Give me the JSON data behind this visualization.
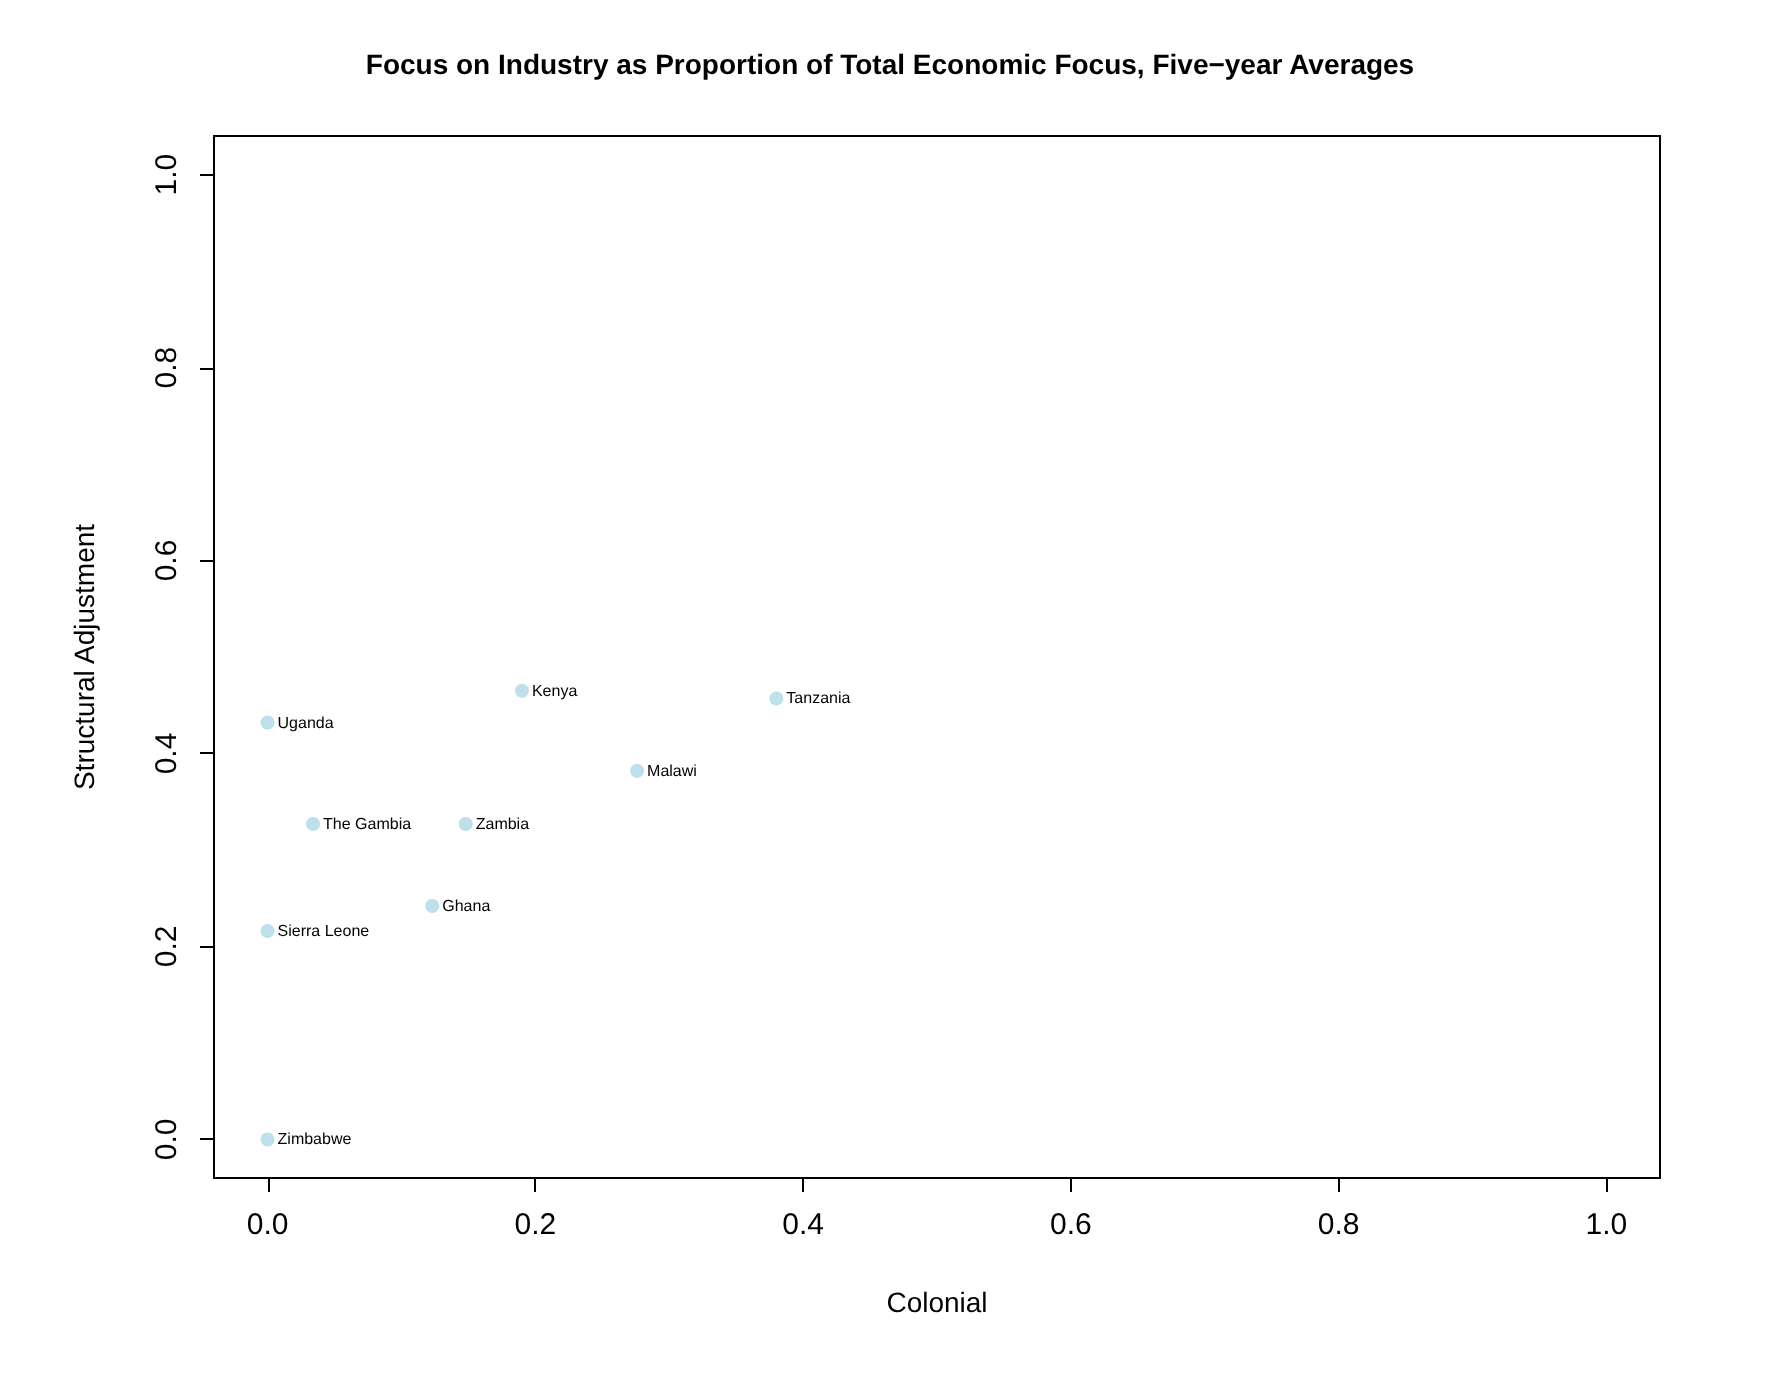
{
  "chart_data": {
    "type": "scatter",
    "title": "Focus on Industry as Proportion of Total Economic Focus, Five−year Averages",
    "xlabel": "Colonial",
    "ylabel": "Structural Adjustment",
    "x": [
      0,
      0.19,
      0.38,
      0.276,
      0.034,
      0.148,
      0.123,
      0,
      0
    ],
    "series": [
      {
        "color": "#add8e6",
        "values": [
          0.432,
          0.465,
          0.457,
          0.382,
          0.327,
          0.327,
          0.242,
          0.216,
          0
        ]
      }
    ],
    "annotations": [
      {
        "text": "Uganda",
        "x": 0,
        "y": 0.432
      },
      {
        "text": "Kenya",
        "x": 0.19,
        "y": 0.465
      },
      {
        "text": "Tanzania",
        "x": 0.38,
        "y": 0.457
      },
      {
        "text": "Malawi",
        "x": 0.276,
        "y": 0.382
      },
      {
        "text": "The Gambia",
        "x": 0.034,
        "y": 0.327
      },
      {
        "text": "Zambia",
        "x": 0.148,
        "y": 0.327
      },
      {
        "text": "Ghana",
        "x": 0.123,
        "y": 0.242
      },
      {
        "text": "Sierra Leone",
        "x": 0,
        "y": 0.216
      },
      {
        "text": "Zimbabwe",
        "x": 0,
        "y": 0
      }
    ],
    "xlim": [
      -0.04,
      1.04
    ],
    "ylim": [
      -0.04,
      1.04
    ],
    "xticks": [
      {
        "value": 0,
        "label": "0.0"
      },
      {
        "value": 0.2,
        "label": "0.2"
      },
      {
        "value": 0.4,
        "label": "0.4"
      },
      {
        "value": 0.6,
        "label": "0.6"
      },
      {
        "value": 0.8,
        "label": "0.8"
      },
      {
        "value": 1,
        "label": "1.0"
      }
    ],
    "yticks": [
      {
        "value": 0,
        "label": "0.0"
      },
      {
        "value": 0.2,
        "label": "0.2"
      },
      {
        "value": 0.4,
        "label": "0.4"
      },
      {
        "value": 0.6,
        "label": "0.6"
      },
      {
        "value": 0.8,
        "label": "0.8"
      },
      {
        "value": 1,
        "label": "1.0"
      }
    ],
    "grid": false,
    "marker": "circle"
  }
}
